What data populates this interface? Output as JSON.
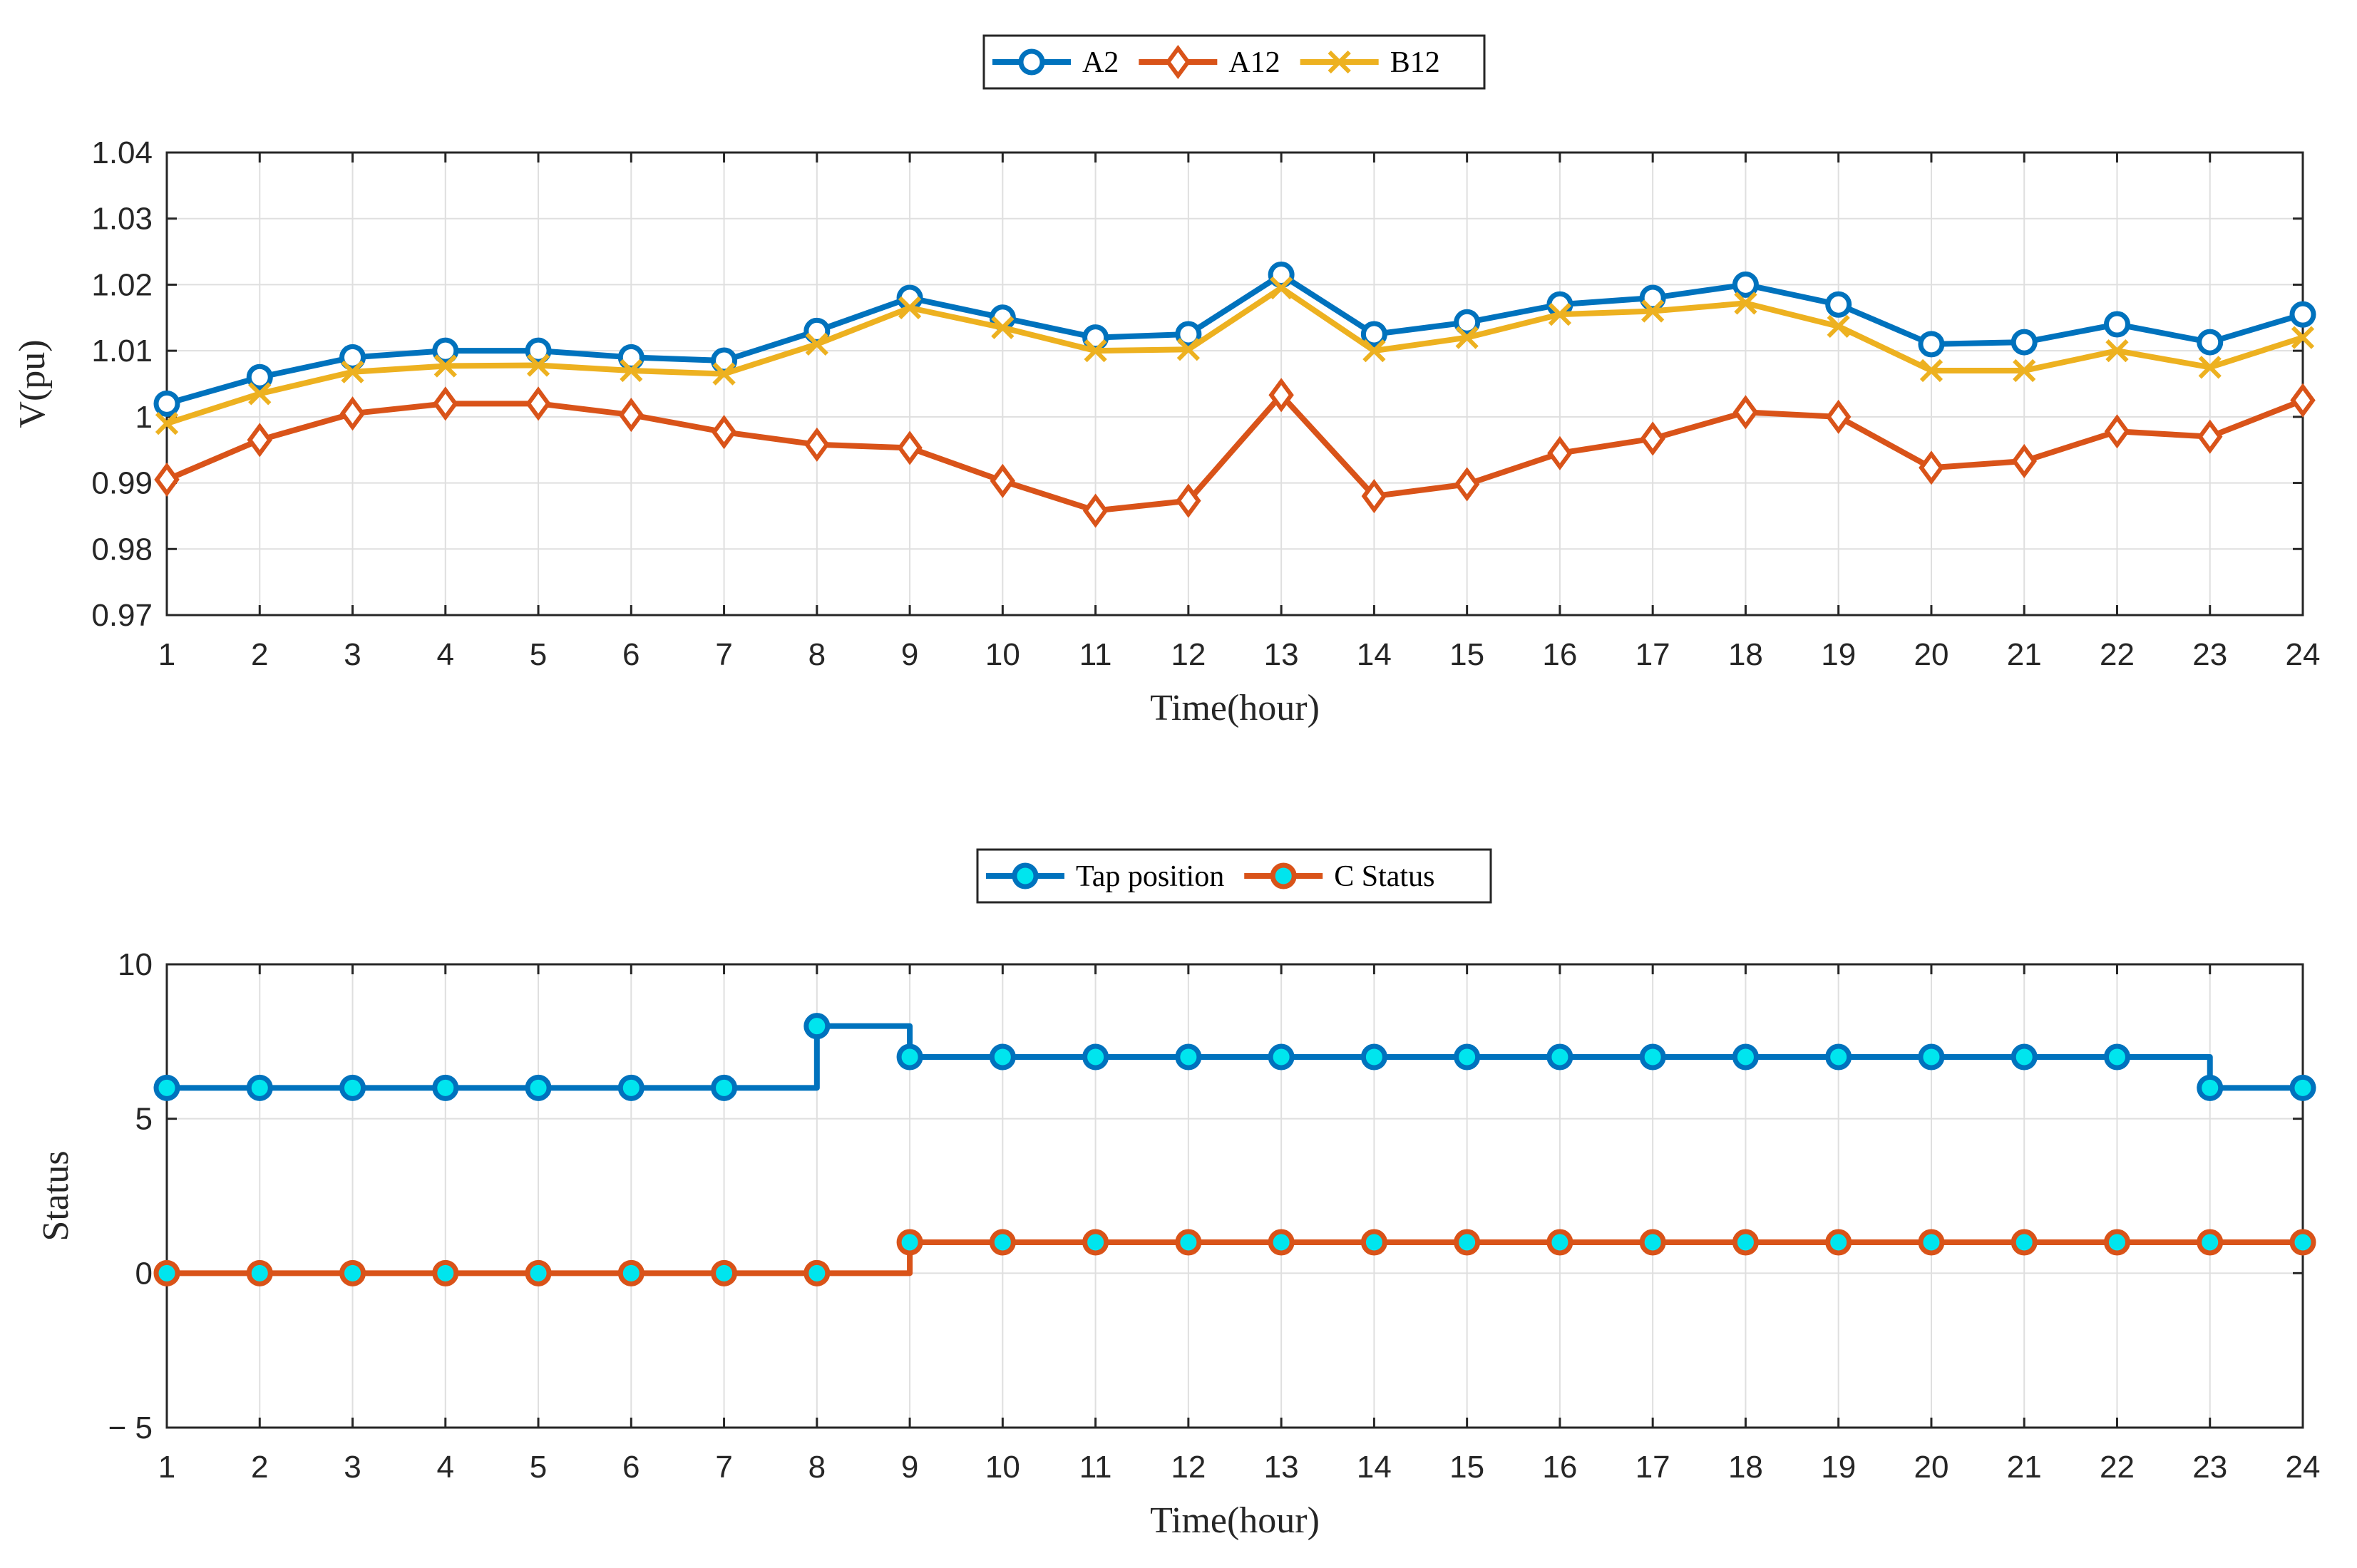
{
  "chart_data": [
    {
      "type": "line",
      "xlabel": "Time(hour)",
      "ylabel": "V(pu)",
      "xlim": [
        1,
        24
      ],
      "ylim": [
        0.97,
        1.04
      ],
      "xticks": [
        "1",
        "2",
        "3",
        "4",
        "5",
        "6",
        "7",
        "8",
        "9",
        "10",
        "11",
        "12",
        "13",
        "14",
        "15",
        "16",
        "17",
        "18",
        "19",
        "20",
        "21",
        "22",
        "23",
        "24"
      ],
      "yticks": [
        "0.97",
        "0.98",
        "0.99",
        "1",
        "1.01",
        "1.02",
        "1.03",
        "1.04"
      ],
      "grid": true,
      "legend_position": "top-center",
      "x": [
        1,
        2,
        3,
        4,
        5,
        6,
        7,
        8,
        9,
        10,
        11,
        12,
        13,
        14,
        15,
        16,
        17,
        18,
        19,
        20,
        21,
        22,
        23,
        24
      ],
      "series": [
        {
          "name": "A2",
          "color": "#0072BD",
          "marker": "circle",
          "values": [
            1.002,
            1.006,
            1.009,
            1.01,
            1.01,
            1.009,
            1.0085,
            1.013,
            1.018,
            1.015,
            1.012,
            1.0125,
            1.0215,
            1.0125,
            1.0143,
            1.017,
            1.018,
            1.02,
            1.017,
            1.011,
            1.0113,
            1.014,
            1.0113,
            1.0155
          ]
        },
        {
          "name": "A12",
          "color": "#D95319",
          "marker": "diamond",
          "values": [
            0.9905,
            0.9965,
            1.0005,
            1.002,
            1.002,
            1.0003,
            0.9977,
            0.9958,
            0.9953,
            0.9903,
            0.9858,
            0.9873,
            1.0033,
            0.988,
            0.9898,
            0.9945,
            0.9967,
            1.0007,
            1.0,
            0.9923,
            0.9933,
            0.9978,
            0.997,
            1.0025
          ]
        },
        {
          "name": "B12",
          "color": "#EDB120",
          "marker": "x",
          "values": [
            0.999,
            1.0035,
            1.0068,
            1.0077,
            1.0078,
            1.007,
            1.0065,
            1.011,
            1.0165,
            1.0135,
            1.01,
            1.0102,
            1.0195,
            1.01,
            1.012,
            1.0155,
            1.016,
            1.0172,
            1.0137,
            1.007,
            1.007,
            1.01,
            1.0075,
            1.012
          ]
        }
      ]
    },
    {
      "type": "line",
      "step": true,
      "xlabel": "Time(hour)",
      "ylabel": "Status",
      "xlim": [
        1,
        24
      ],
      "ylim": [
        -5,
        10
      ],
      "xticks": [
        "1",
        "2",
        "3",
        "4",
        "5",
        "6",
        "7",
        "8",
        "9",
        "10",
        "11",
        "12",
        "13",
        "14",
        "15",
        "16",
        "17",
        "18",
        "19",
        "20",
        "21",
        "22",
        "23",
        "24"
      ],
      "yticks": [
        "− 5",
        "0",
        "5",
        "10"
      ],
      "grid": true,
      "legend_position": "top-center",
      "x": [
        1,
        2,
        3,
        4,
        5,
        6,
        7,
        8,
        9,
        10,
        11,
        12,
        13,
        14,
        15,
        16,
        17,
        18,
        19,
        20,
        21,
        22,
        23,
        24
      ],
      "series": [
        {
          "name": "Tap position",
          "color": "#0072BD",
          "marker": "circle",
          "marker_fill": "#00E5EE",
          "values": [
            6,
            6,
            6,
            6,
            6,
            6,
            6,
            8,
            7,
            7,
            7,
            7,
            7,
            7,
            7,
            7,
            7,
            7,
            7,
            7,
            7,
            7,
            6,
            6
          ]
        },
        {
          "name": "C Status",
          "color": "#D95319",
          "marker": "circle",
          "marker_fill": "#00E5EE",
          "values": [
            0,
            0,
            0,
            0,
            0,
            0,
            0,
            0,
            1,
            1,
            1,
            1,
            1,
            1,
            1,
            1,
            1,
            1,
            1,
            1,
            1,
            1,
            1,
            1
          ]
        }
      ]
    }
  ]
}
